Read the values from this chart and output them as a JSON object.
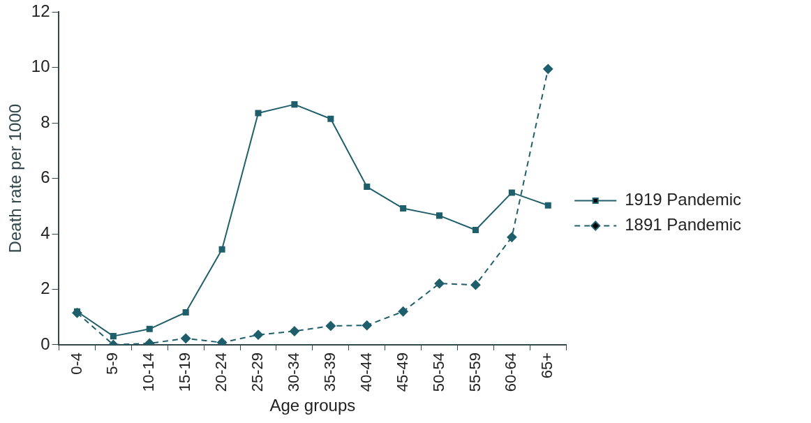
{
  "chart_data": {
    "type": "line",
    "xlabel": "Age groups",
    "ylabel": "Death rate per 1000",
    "categories": [
      "0-4",
      "5-9",
      "10-14",
      "15-19",
      "20-24",
      "25-29",
      "30-34",
      "35-39",
      "40-44",
      "45-49",
      "50-54",
      "55-59",
      "60-64",
      "65+"
    ],
    "series": [
      {
        "name": "1919 Pandemic",
        "color": "#1f5f6b",
        "marker": "square",
        "line_style": "solid",
        "values": [
          1.2,
          0.31,
          0.57,
          1.17,
          3.44,
          8.36,
          8.67,
          8.15,
          5.7,
          4.92,
          4.66,
          4.14,
          5.49,
          5.03
        ]
      },
      {
        "name": "1891 Pandemic",
        "color": "#1f5f6b",
        "marker": "diamond",
        "line_style": "dashed",
        "values": [
          1.15,
          0,
          0.05,
          0.23,
          0.08,
          0.36,
          0.49,
          0.68,
          0.7,
          1.2,
          2.21,
          2.16,
          3.88,
          9.95
        ]
      }
    ],
    "ylim": [
      0,
      12
    ],
    "yticks": [
      0,
      2,
      4,
      6,
      8,
      10,
      12
    ],
    "grid": false,
    "legend": "right"
  }
}
